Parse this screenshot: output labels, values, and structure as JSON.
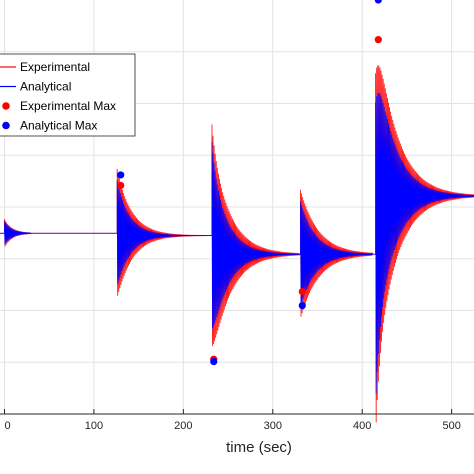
{
  "chart_data": {
    "type": "line",
    "xlabel": "time (sec)",
    "ylabel": "",
    "title": "",
    "xlim": [
      -5,
      525
    ],
    "ylim": [
      -1.55,
      2.0
    ],
    "x_ticks": [
      0,
      100,
      200,
      300,
      400,
      500
    ],
    "x_tick_labels": [
      "0",
      "100",
      "200",
      "300",
      "400",
      "500"
    ],
    "y_tick_labels": [],
    "grid": true,
    "legend_position": "top-left",
    "legend": [
      {
        "label": "Experimental",
        "kind": "line",
        "color": "#ff0000"
      },
      {
        "label": "Analytical",
        "kind": "line",
        "color": "#0000ff"
      },
      {
        "label": "Experimental Max",
        "kind": "marker",
        "color": "#ff0000"
      },
      {
        "label": "Analytical Max",
        "kind": "marker",
        "color": "#0000ff"
      }
    ],
    "series": [
      {
        "name": "Experimental",
        "color": "#ff0000",
        "segments": [
          {
            "t_start": 0,
            "t_end": 30,
            "base": 0.0,
            "peak": 0.12,
            "decay": 0.12,
            "period": 1.2,
            "settle_to": 0.0
          },
          {
            "t_start": 126,
            "t_end": 225,
            "base": 0.0,
            "peak": 0.55,
            "decay": 0.06,
            "period": 1.2,
            "settle_to": -0.02
          },
          {
            "t_start": 232,
            "t_end": 330,
            "base": -0.02,
            "peak": 0.95,
            "decay": 0.05,
            "period": 1.2,
            "settle_to": -0.18
          },
          {
            "t_start": 331,
            "t_end": 412,
            "base": -0.18,
            "peak": 0.55,
            "decay": 0.05,
            "period": 1.2,
            "settle_to": -0.18
          },
          {
            "t_start": 415,
            "t_end": 525,
            "base": -0.18,
            "peak": 1.55,
            "decay": 0.045,
            "period": 1.2,
            "settle_to": 0.32
          }
        ],
        "max_points": [
          {
            "x": 130,
            "y": 0.41
          },
          {
            "x": 234,
            "y": -1.08
          },
          {
            "x": 333,
            "y": -0.5
          },
          {
            "x": 418,
            "y": 1.66
          }
        ]
      },
      {
        "name": "Analytical",
        "color": "#0000ff",
        "segments": [
          {
            "t_start": 0,
            "t_end": 30,
            "base": 0.0,
            "peak": 0.1,
            "decay": 0.12,
            "period": 1.2,
            "settle_to": 0.0
          },
          {
            "t_start": 126,
            "t_end": 225,
            "base": 0.0,
            "peak": 0.45,
            "decay": 0.07,
            "period": 1.2,
            "settle_to": -0.02
          },
          {
            "t_start": 232,
            "t_end": 330,
            "base": -0.02,
            "peak": 0.8,
            "decay": 0.06,
            "period": 1.2,
            "settle_to": -0.18
          },
          {
            "t_start": 331,
            "t_end": 412,
            "base": -0.18,
            "peak": 0.45,
            "decay": 0.06,
            "period": 1.2,
            "settle_to": -0.18
          },
          {
            "t_start": 415,
            "t_end": 525,
            "base": -0.18,
            "peak": 1.3,
            "decay": 0.05,
            "period": 1.2,
            "settle_to": 0.32
          }
        ],
        "max_points": [
          {
            "x": 130,
            "y": 0.5
          },
          {
            "x": 234,
            "y": -1.1
          },
          {
            "x": 333,
            "y": -0.62
          },
          {
            "x": 418,
            "y": 2.0
          }
        ]
      }
    ]
  }
}
